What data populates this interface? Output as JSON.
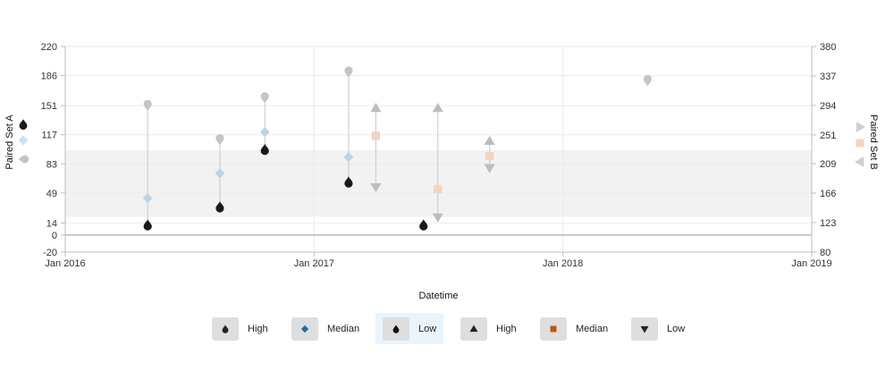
{
  "chart_data": {
    "type": "scatter",
    "xlabel": "Datetime",
    "y_left_label": "Paired Set A",
    "y_right_label": "Paired Set B",
    "x_range": [
      "2016-01-01",
      "2019-01-01"
    ],
    "x_ticks": [
      "Jan 2016",
      "Jan 2017",
      "Jan 2018",
      "Jan 2019"
    ],
    "y_left_range": [
      -20,
      220
    ],
    "y_left_ticks": [
      -20,
      0,
      14,
      49,
      83,
      117,
      151,
      186,
      220
    ],
    "y_right_range": [
      80,
      380
    ],
    "y_right_ticks": [
      80,
      123,
      166,
      209,
      251,
      294,
      337,
      380
    ],
    "band": {
      "axis": "left",
      "from": 21,
      "to": 99
    },
    "grid": true,
    "legend_position": "bottom",
    "colors": {
      "a_high": "#c4c4c4",
      "a_median": "#bdd3e3",
      "a_low": "#1a1a1a",
      "b_high": "#bdbdbd",
      "b_median": "#f1d3bf",
      "b_low": "#bdbdbd",
      "link": "#cfcfcf",
      "band": "#f2f2f2",
      "zero_line": "#c8c8c8"
    },
    "series_a": [
      {
        "date": "2016-05-01",
        "high": 151,
        "median": 43,
        "low": 12
      },
      {
        "date": "2016-08-15",
        "high": 111,
        "median": 72,
        "low": 33
      },
      {
        "date": "2016-10-20",
        "high": 160,
        "median": 120,
        "low": 100
      },
      {
        "date": "2017-02-20",
        "high": 190,
        "median": 91,
        "low": 62
      },
      {
        "date": "2017-06-10",
        "high": null,
        "median": null,
        "low": 12
      },
      {
        "date": "2018-05-05",
        "high": 180,
        "median": null,
        "low": null
      }
    ],
    "series_b": [
      {
        "date": "2017-04-01",
        "high": 290,
        "median": 250,
        "low": 175
      },
      {
        "date": "2017-07-01",
        "high": 290,
        "median": 172,
        "low": 131
      },
      {
        "date": "2017-09-15",
        "high": 242,
        "median": 220,
        "low": 203
      }
    ],
    "legend": [
      {
        "label": "High",
        "marker": "drop",
        "color": "#222222"
      },
      {
        "label": "Median",
        "marker": "diamond",
        "color": "#1f6aa5"
      },
      {
        "label": "Low",
        "marker": "drop",
        "color": "#111111",
        "active": true
      },
      {
        "label": "High",
        "marker": "triangle-up",
        "color": "#222222"
      },
      {
        "label": "Median",
        "marker": "square",
        "color": "#c4520a"
      },
      {
        "label": "Low",
        "marker": "triangle-down",
        "color": "#222222"
      }
    ],
    "side_legend_a": [
      "#1a1a1a",
      "#cfe0ee",
      "#c4c4c4"
    ],
    "side_legend_b": [
      "#cfcfcf",
      "#f3d5c1",
      "#cfcfcf"
    ]
  }
}
